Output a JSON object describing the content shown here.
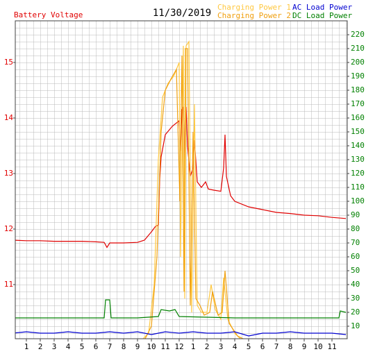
{
  "chart_data": {
    "type": "line",
    "title": "11/30/2019",
    "xlim": [
      0.2,
      24.1
    ],
    "xticks": [
      1,
      2,
      3,
      4,
      5,
      6,
      7,
      8,
      9,
      10,
      11,
      12,
      {
        "value": 13,
        "label": "1"
      },
      {
        "value": 14,
        "label": "2"
      },
      {
        "value": 15,
        "label": "3"
      },
      {
        "value": 16,
        "label": "4"
      },
      {
        "value": 17,
        "label": "5"
      },
      {
        "value": 18,
        "label": "6"
      },
      {
        "value": 19,
        "label": "7"
      },
      {
        "value": 20,
        "label": "8"
      },
      {
        "value": 21,
        "label": "9"
      },
      {
        "value": 22,
        "label": "10"
      },
      {
        "value": 23,
        "label": "11"
      }
    ],
    "ylim": [
      10.025,
      15.75
    ],
    "yticks": [
      11,
      12,
      13,
      14,
      15
    ],
    "ytick_color": "#e00000",
    "y2lim": [
      1,
      230
    ],
    "y2ticks": [
      10,
      20,
      30,
      40,
      50,
      60,
      70,
      80,
      90,
      100,
      110,
      120,
      130,
      140,
      150,
      160,
      170,
      180,
      190,
      200,
      210,
      220
    ],
    "y2tick_color": "#008000",
    "grid": true,
    "series": [
      {
        "name": "Battery Voltage",
        "color": "#e00000",
        "axis": "y",
        "x": [
          0,
          1,
          2,
          3,
          4,
          5,
          6,
          6.6,
          6.8,
          7,
          8,
          9,
          9.5,
          10,
          10.3,
          10.5,
          10.6,
          10.7,
          11,
          11.5,
          12,
          12.1,
          12.2,
          12.3,
          12.4,
          12.5,
          12.6,
          12.8,
          13,
          13.1,
          13.3,
          13.6,
          13.9,
          14.1,
          14.5,
          15,
          15.2,
          15.3,
          15.4,
          15.7,
          16,
          17,
          18,
          19,
          20,
          21,
          22,
          23,
          24
        ],
        "values": [
          11.8,
          11.79,
          11.79,
          11.78,
          11.78,
          11.78,
          11.77,
          11.76,
          11.67,
          11.75,
          11.75,
          11.76,
          11.8,
          11.95,
          12.05,
          12.07,
          12.9,
          13.3,
          13.7,
          13.85,
          13.95,
          13.4,
          14.15,
          14.2,
          13.2,
          14.2,
          13.5,
          12.95,
          13.1,
          13.6,
          12.85,
          12.75,
          12.85,
          12.72,
          12.7,
          12.68,
          13.1,
          13.7,
          12.95,
          12.6,
          12.5,
          12.4,
          12.35,
          12.3,
          12.28,
          12.25,
          12.24,
          12.21,
          12.19
        ]
      },
      {
        "name": "Charging Power 1",
        "color": "#ffc840",
        "axis": "y2",
        "x": [
          9.3,
          9.8,
          10.2,
          10.5,
          10.8,
          11.2,
          11.6,
          12,
          12.1,
          12.3,
          12.4,
          12.5,
          12.7,
          12.9,
          13.1,
          13.3,
          13.6,
          14,
          14.3,
          14.6,
          15,
          15.2,
          15.5,
          16,
          16.5
        ],
        "values": [
          0,
          5,
          40,
          130,
          175,
          185,
          190,
          200,
          60,
          212,
          30,
          212,
          215,
          20,
          170,
          25,
          20,
          20,
          40,
          22,
          15,
          45,
          15,
          5,
          0
        ]
      },
      {
        "name": "Charging Power 2",
        "color": "#f0a010",
        "axis": "y2",
        "x": [
          9.5,
          10,
          10.4,
          10.7,
          11,
          11.4,
          11.8,
          12.05,
          12.2,
          12.35,
          12.45,
          12.6,
          12.8,
          13,
          13.2,
          13.5,
          13.8,
          14.2,
          14.4,
          14.8,
          15.1,
          15.3,
          15.6,
          16.2,
          16.8
        ],
        "values": [
          0,
          10,
          60,
          150,
          180,
          188,
          195,
          100,
          205,
          35,
          210,
          210,
          25,
          150,
          30,
          25,
          18,
          20,
          35,
          18,
          20,
          50,
          12,
          3,
          0
        ]
      },
      {
        "name": "AC Load Power",
        "color": "#0000d0",
        "axis": "y2",
        "x": [
          0,
          1,
          2,
          3,
          4,
          5,
          6,
          7,
          8,
          9,
          10,
          11,
          12,
          13,
          14,
          15,
          16,
          17,
          18,
          19,
          20,
          21,
          22,
          23,
          24
        ],
        "values": [
          5,
          6,
          5,
          5,
          6,
          5,
          5,
          6,
          5,
          6,
          4,
          6,
          5,
          6,
          5,
          5,
          6,
          3,
          5,
          5,
          6,
          5,
          5,
          5,
          4
        ]
      },
      {
        "name": "DC Load Power",
        "color": "#008000",
        "axis": "y2",
        "x": [
          0,
          3,
          6,
          6.6,
          6.7,
          7,
          7.1,
          9,
          10.5,
          10.7,
          11.3,
          11.7,
          12,
          16,
          20,
          23.5,
          23.6,
          24
        ],
        "values": [
          16,
          16,
          16,
          16,
          29,
          29,
          16,
          16,
          17,
          22,
          21,
          22,
          17,
          16,
          16,
          16,
          21,
          20
        ]
      }
    ]
  }
}
